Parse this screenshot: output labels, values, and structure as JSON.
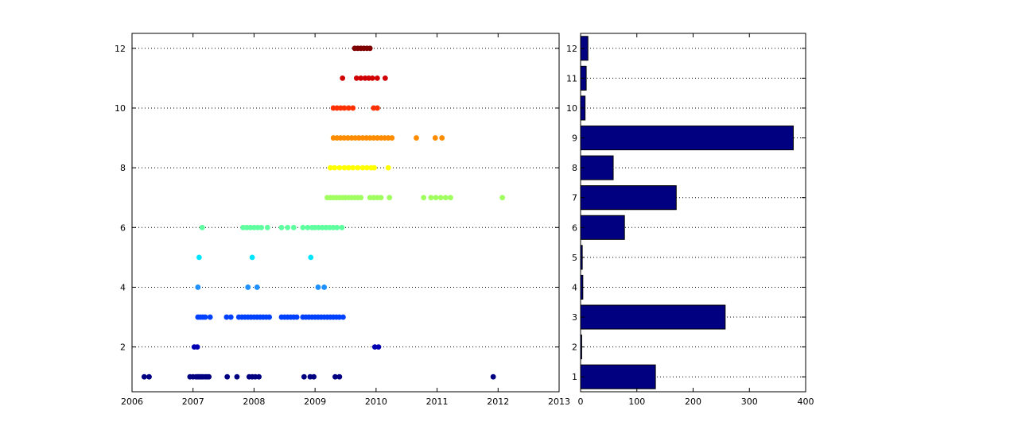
{
  "chart_data": [
    {
      "type": "scatter",
      "title": "",
      "xlabel": "",
      "ylabel": "",
      "xlim": [
        2006,
        2013
      ],
      "ylim": [
        0.5,
        12.5
      ],
      "x_ticks": [
        2006,
        2007,
        2008,
        2009,
        2010,
        2011,
        2012,
        2013
      ],
      "y_ticks": [
        2,
        4,
        6,
        8,
        10,
        12
      ],
      "grid": "horizontal dotted",
      "series": [
        {
          "y": 1,
          "color": "#000080",
          "x": [
            2006.2,
            2006.28,
            2006.95,
            2007.0,
            2007.05,
            2007.08,
            2007.1,
            2007.13,
            2007.16,
            2007.2,
            2007.23,
            2007.26,
            2007.56,
            2007.72,
            2007.92,
            2007.97,
            2008.02,
            2008.08,
            2008.82,
            2008.92,
            2008.98,
            2009.33,
            2009.4,
            2011.92
          ]
        },
        {
          "y": 2,
          "color": "#0000B0",
          "x": [
            2007.02,
            2007.07,
            2009.98,
            2010.04
          ]
        },
        {
          "y": 3,
          "color": "#0040FF",
          "x": [
            2007.08,
            2007.12,
            2007.16,
            2007.2,
            2007.28,
            2007.55,
            2007.62,
            2007.75,
            2007.8,
            2007.85,
            2007.9,
            2007.95,
            2008.0,
            2008.05,
            2008.1,
            2008.15,
            2008.2,
            2008.25,
            2008.45,
            2008.5,
            2008.55,
            2008.6,
            2008.65,
            2008.7,
            2008.8,
            2008.85,
            2008.9,
            2008.95,
            2009.0,
            2009.05,
            2009.1,
            2009.15,
            2009.2,
            2009.25,
            2009.3,
            2009.35,
            2009.4,
            2009.46
          ]
        },
        {
          "y": 4,
          "color": "#1E90FF",
          "x": [
            2007.08,
            2007.9,
            2008.05,
            2009.05,
            2009.15
          ]
        },
        {
          "y": 5,
          "color": "#00E5FF",
          "x": [
            2007.1,
            2007.97,
            2008.93
          ]
        },
        {
          "y": 6,
          "color": "#5FFFA0",
          "x": [
            2007.15,
            2007.82,
            2007.88,
            2007.94,
            2008.0,
            2008.06,
            2008.12,
            2008.22,
            2008.45,
            2008.55,
            2008.65,
            2008.8,
            2008.88,
            2008.95,
            2009.0,
            2009.06,
            2009.12,
            2009.18,
            2009.24,
            2009.3,
            2009.36,
            2009.44
          ]
        },
        {
          "y": 7,
          "color": "#A0FF5F",
          "x": [
            2009.2,
            2009.25,
            2009.3,
            2009.35,
            2009.4,
            2009.45,
            2009.5,
            2009.55,
            2009.6,
            2009.65,
            2009.7,
            2009.75,
            2009.9,
            2009.96,
            2010.02,
            2010.08,
            2010.22,
            2010.78,
            2010.9,
            2010.98,
            2011.06,
            2011.14,
            2011.22,
            2012.07
          ]
        },
        {
          "y": 8,
          "color": "#FFFF00",
          "x": [
            2009.25,
            2009.32,
            2009.4,
            2009.48,
            2009.55,
            2009.62,
            2009.7,
            2009.78,
            2009.85,
            2009.92,
            2009.97,
            2010.2
          ]
        },
        {
          "y": 9,
          "color": "#FF8C00",
          "x": [
            2009.3,
            2009.36,
            2009.42,
            2009.48,
            2009.54,
            2009.6,
            2009.66,
            2009.72,
            2009.78,
            2009.84,
            2009.9,
            2009.96,
            2010.02,
            2010.08,
            2010.14,
            2010.2,
            2010.26,
            2010.66,
            2010.97,
            2011.08
          ]
        },
        {
          "y": 10,
          "color": "#FF3000",
          "x": [
            2009.3,
            2009.36,
            2009.42,
            2009.48,
            2009.55,
            2009.62,
            2009.96,
            2010.02
          ]
        },
        {
          "y": 11,
          "color": "#D00000",
          "x": [
            2009.45,
            2009.68,
            2009.75,
            2009.82,
            2009.88,
            2009.94,
            2010.02,
            2010.15
          ]
        },
        {
          "y": 12,
          "color": "#800000",
          "x": [
            2009.65,
            2009.7,
            2009.75,
            2009.8,
            2009.85,
            2009.9
          ]
        }
      ]
    },
    {
      "type": "bar",
      "orientation": "horizontal",
      "title": "",
      "xlabel": "",
      "ylabel": "",
      "categories": [
        "1",
        "2",
        "3",
        "4",
        "5",
        "6",
        "7",
        "8",
        "9",
        "10",
        "11",
        "12"
      ],
      "values": [
        133,
        2,
        257,
        4,
        3,
        78,
        170,
        58,
        378,
        8,
        10,
        13
      ],
      "xlim": [
        0,
        400
      ],
      "x_ticks": [
        0,
        100,
        200,
        300,
        400
      ],
      "bar_color": "#000080",
      "grid": "horizontal dotted"
    }
  ]
}
